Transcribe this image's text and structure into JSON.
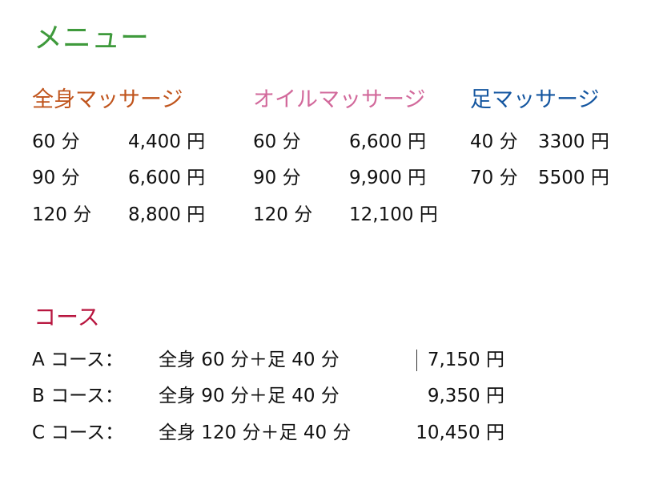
{
  "title": "メニュー",
  "colors": {
    "title": "#3f9a3c",
    "full_body": "#c0541c",
    "oil": "#d2699b",
    "foot": "#1456a0",
    "course": "#b8163f"
  },
  "menus": [
    {
      "heading": "全身マッサージ",
      "rows": [
        {
          "time": "60 分",
          "price": "4,400 円"
        },
        {
          "time": "90 分",
          "price": "6,600 円"
        },
        {
          "time": "120 分",
          "price": "8,800 円"
        }
      ]
    },
    {
      "heading": "オイルマッサージ",
      "rows": [
        {
          "time": "60 分",
          "price": "6,600 円"
        },
        {
          "time": "90 分",
          "price": "9,900 円"
        },
        {
          "time": "120 分",
          "price": "12,100 円"
        }
      ]
    },
    {
      "heading": "足マッサージ",
      "rows": [
        {
          "time": "40 分",
          "price": "3300 円"
        },
        {
          "time": "70 分",
          "price": "5500 円"
        }
      ]
    }
  ],
  "course": {
    "heading": "コース",
    "rows": [
      {
        "name": "A コース：",
        "content": "全身 60 分＋足 40 分",
        "price": "7,150 円"
      },
      {
        "name": "B コース：",
        "content": "全身 90 分＋足 40 分",
        "price": "9,350 円"
      },
      {
        "name": "C コース：",
        "content": "全身 120 分＋足 40 分",
        "price": "10,450 円"
      }
    ]
  }
}
